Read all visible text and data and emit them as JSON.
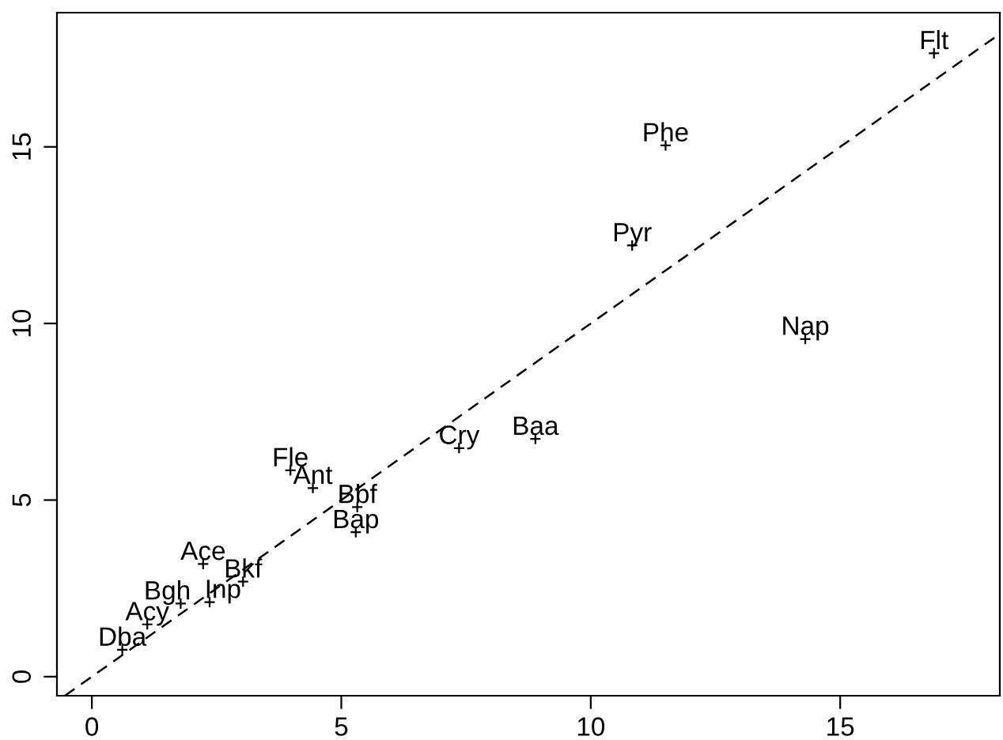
{
  "chart_data": {
    "type": "scatter",
    "xlim": [
      -0.7,
      18.2
    ],
    "ylim": [
      -0.54,
      18.8
    ],
    "xticks": [
      0,
      5,
      10,
      15
    ],
    "yticks": [
      0,
      5,
      10,
      15
    ],
    "grid": false,
    "legend": false,
    "marker": "cross",
    "series": [
      {
        "color": "#000000",
        "x": [
          16.88,
          11.5,
          10.83,
          14.3,
          8.89,
          7.36,
          3.98,
          4.43,
          5.32,
          5.29,
          2.23,
          3.03,
          1.78,
          2.36,
          1.11,
          0.61
        ],
        "values": [
          17.65,
          15.04,
          12.21,
          9.56,
          6.73,
          6.47,
          5.84,
          5.34,
          4.8,
          4.09,
          3.19,
          2.69,
          2.07,
          2.11,
          1.48,
          0.76
        ]
      },
      {
        "type": "line",
        "color": "#000000",
        "marker": "none",
        "line_style": "dashed",
        "x": [
          -0.54,
          18.2
        ],
        "values": [
          -0.54,
          18.2
        ]
      }
    ],
    "annotations": [
      {
        "text": "Flt",
        "x": 16.88,
        "y": 17.65
      },
      {
        "text": "Phe",
        "x": 11.5,
        "y": 15.04
      },
      {
        "text": "Pyr",
        "x": 10.83,
        "y": 12.21
      },
      {
        "text": "Nap",
        "x": 14.3,
        "y": 9.56
      },
      {
        "text": "Baa",
        "x": 8.89,
        "y": 6.73
      },
      {
        "text": "Cry",
        "x": 7.36,
        "y": 6.47
      },
      {
        "text": "Fle",
        "x": 3.98,
        "y": 5.84
      },
      {
        "text": "Ant",
        "x": 4.43,
        "y": 5.34
      },
      {
        "text": "Bbf",
        "x": 5.32,
        "y": 4.8
      },
      {
        "text": "Bap",
        "x": 5.29,
        "y": 4.09
      },
      {
        "text": "Ace",
        "x": 2.23,
        "y": 3.19
      },
      {
        "text": "Bkf",
        "x": 3.03,
        "y": 2.69
      },
      {
        "text": "Bgh",
        "x": 1.78,
        "y": 2.07
      },
      {
        "text": "Inp",
        "x": 2.36,
        "y": 2.11
      },
      {
        "text": "Acy",
        "x": 1.11,
        "y": 1.48
      },
      {
        "text": "Dba",
        "x": 0.61,
        "y": 0.76
      }
    ]
  }
}
